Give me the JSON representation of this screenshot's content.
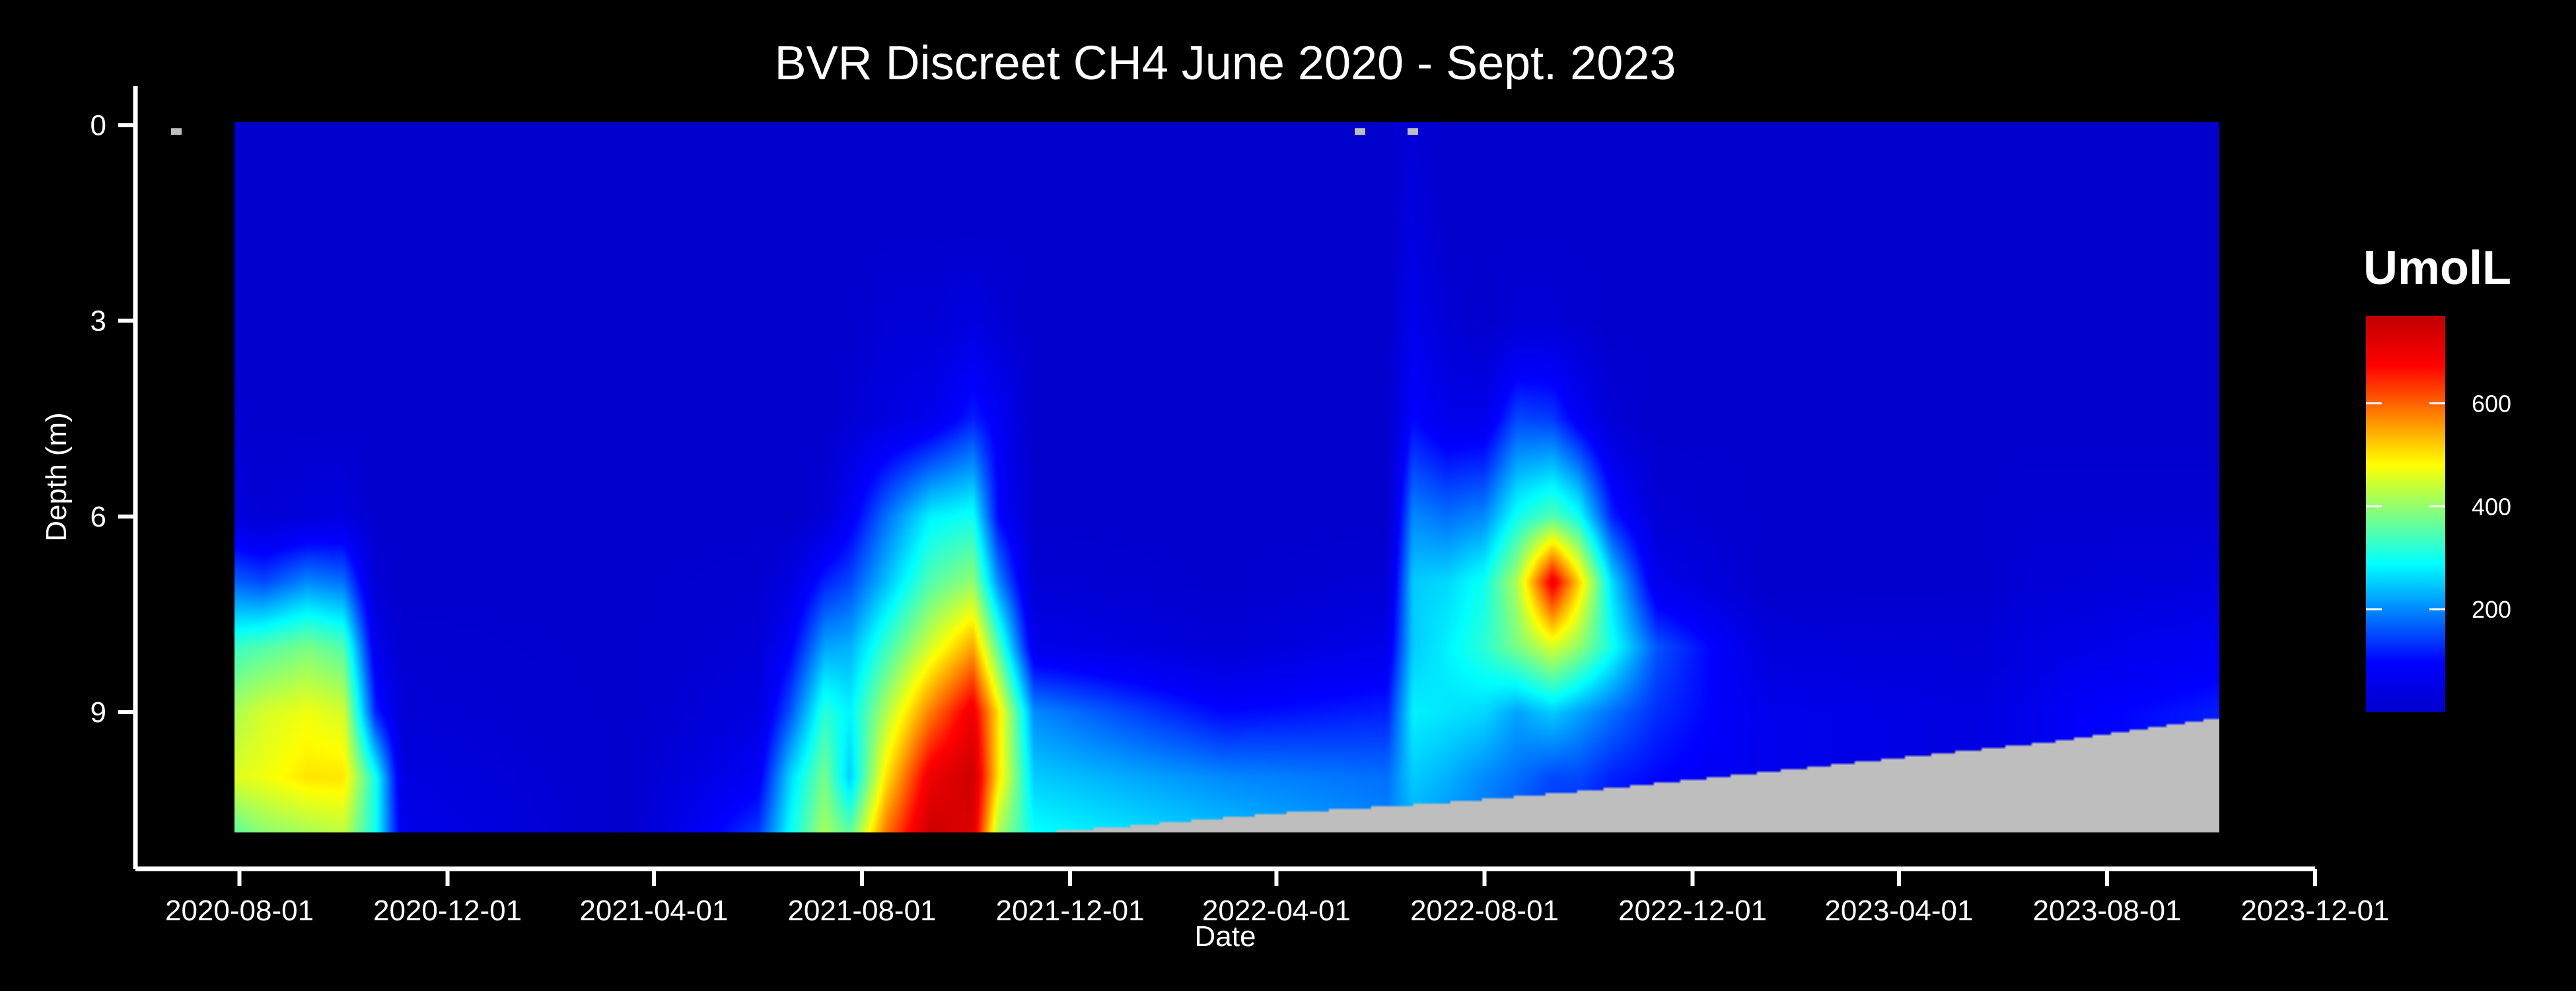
{
  "chart_data": {
    "type": "heatmap",
    "title": "BVR Discreet CH4 June 2020 - Sept. 2023",
    "xlabel": "Date",
    "ylabel": "Depth (m)",
    "x_axis": {
      "type": "date",
      "range": [
        "2020-06-01",
        "2023-12-01"
      ],
      "data_extent": [
        "2020-06-18",
        "2023-10-16"
      ],
      "ticks": [
        "2020-08-01",
        "2020-12-01",
        "2021-04-01",
        "2021-08-01",
        "2021-12-01",
        "2022-04-01",
        "2022-08-01",
        "2022-12-01",
        "2023-04-01",
        "2023-08-01",
        "2023-12-01"
      ]
    },
    "y_axis": {
      "reversed": true,
      "range": [
        -0.6,
        11.4
      ],
      "data_extent": [
        0.1,
        11
      ],
      "ticks": [
        0,
        3,
        6,
        9
      ]
    },
    "colorbar": {
      "title": "UmolL",
      "range": [
        0,
        770
      ],
      "ticks": [
        200,
        400,
        600
      ],
      "colors": [
        "#0000cc",
        "#0000ff",
        "#0080ff",
        "#00ffff",
        "#80ff80",
        "#ffff00",
        "#ff8000",
        "#ff0000",
        "#c00000"
      ],
      "position": "right"
    },
    "missing_color": "#bebebe",
    "grid": false,
    "depths": [
      0.1,
      1.5,
      3,
      4.5,
      6,
      7,
      8,
      9,
      10,
      11
    ],
    "bottom_limit": {
      "dates": [
        "2021-09-15",
        "2022-01-01",
        "2022-04-01",
        "2022-07-01",
        "2022-10-01",
        "2023-01-01",
        "2023-04-01",
        "2023-07-01",
        "2023-10-16"
      ],
      "depth": [
        10.95,
        10.75,
        10.55,
        10.4,
        10.2,
        9.95,
        9.7,
        9.45,
        9.05
      ]
    },
    "profiles": [
      {
        "date": "2020-06-18",
        "values": [
          0,
          0,
          0,
          0,
          0,
          10,
          30,
          80,
          200,
          180
        ]
      },
      {
        "date": "2020-07-01",
        "values": [
          0,
          0,
          0,
          0,
          10,
          120,
          200,
          300,
          350,
          260
        ]
      },
      {
        "date": "2020-07-20",
        "values": [
          0,
          0,
          0,
          10,
          40,
          180,
          320,
          400,
          450,
          320
        ]
      },
      {
        "date": "2020-08-15",
        "values": [
          0,
          0,
          0,
          0,
          20,
          150,
          350,
          450,
          470,
          380
        ]
      },
      {
        "date": "2020-09-10",
        "values": [
          0,
          0,
          0,
          0,
          30,
          200,
          380,
          470,
          500,
          400
        ]
      },
      {
        "date": "2020-10-01",
        "values": [
          0,
          0,
          0,
          0,
          40,
          180,
          350,
          450,
          500,
          420
        ]
      },
      {
        "date": "2020-10-20",
        "values": [
          0,
          0,
          0,
          0,
          0,
          20,
          60,
          120,
          300,
          300
        ]
      },
      {
        "date": "2020-11-05",
        "values": [
          0,
          0,
          0,
          0,
          0,
          0,
          10,
          20,
          40,
          60
        ]
      },
      {
        "date": "2021-03-15",
        "values": [
          0,
          0,
          0,
          0,
          0,
          0,
          0,
          0,
          0,
          0
        ]
      },
      {
        "date": "2021-06-01",
        "values": [
          0,
          0,
          0,
          0,
          0,
          10,
          20,
          40,
          80,
          150
        ]
      },
      {
        "date": "2021-06-20",
        "values": [
          0,
          0,
          0,
          0,
          0,
          40,
          90,
          160,
          260,
          300
        ]
      },
      {
        "date": "2021-07-10",
        "values": [
          0,
          0,
          0,
          0,
          20,
          120,
          220,
          320,
          380,
          420
        ]
      },
      {
        "date": "2021-07-25",
        "values": [
          0,
          0,
          0,
          20,
          80,
          150,
          230,
          280,
          250,
          380
        ]
      },
      {
        "date": "2021-08-15",
        "values": [
          0,
          0,
          20,
          40,
          180,
          240,
          330,
          420,
          500,
          600
        ]
      },
      {
        "date": "2021-09-10",
        "values": [
          0,
          0,
          20,
          60,
          280,
          350,
          450,
          580,
          700,
          760
        ]
      },
      {
        "date": "2021-10-05",
        "values": [
          0,
          0,
          40,
          120,
          300,
          400,
          550,
          700,
          750,
          720
        ]
      },
      {
        "date": "2021-10-20",
        "values": [
          0,
          0,
          20,
          80,
          100,
          200,
          350,
          500,
          500,
          400
        ]
      },
      {
        "date": "2021-11-10",
        "values": [
          0,
          0,
          0,
          0,
          0,
          20,
          60,
          200,
          250,
          300
        ]
      },
      {
        "date": "2022-03-01",
        "values": [
          0,
          0,
          0,
          0,
          0,
          0,
          20,
          100,
          200,
          250
        ]
      },
      {
        "date": "2022-06-05",
        "values": [
          0,
          0,
          0,
          0,
          0,
          20,
          60,
          120,
          180,
          200
        ]
      },
      {
        "date": "2022-06-20",
        "values": [
          20,
          40,
          60,
          100,
          200,
          250,
          250,
          280,
          250,
          220
        ]
      },
      {
        "date": "2022-07-10",
        "values": [
          0,
          0,
          20,
          60,
          180,
          260,
          280,
          270,
          230,
          200
        ]
      },
      {
        "date": "2022-08-01",
        "values": [
          0,
          0,
          0,
          60,
          200,
          300,
          320,
          260,
          200,
          180
        ]
      },
      {
        "date": "2022-08-20",
        "values": [
          0,
          0,
          20,
          150,
          300,
          420,
          380,
          220,
          180,
          150
        ]
      },
      {
        "date": "2022-09-10",
        "values": [
          0,
          0,
          20,
          140,
          350,
          700,
          450,
          250,
          150,
          120
        ]
      },
      {
        "date": "2022-09-25",
        "values": [
          0,
          0,
          10,
          80,
          300,
          520,
          400,
          220,
          150,
          110
        ]
      },
      {
        "date": "2022-10-15",
        "values": [
          0,
          0,
          0,
          20,
          120,
          260,
          300,
          180,
          120,
          90
        ]
      },
      {
        "date": "2022-11-10",
        "values": [
          0,
          0,
          0,
          0,
          20,
          60,
          160,
          130,
          100,
          80
        ]
      },
      {
        "date": "2023-01-15",
        "values": [
          0,
          0,
          0,
          0,
          0,
          0,
          30,
          60,
          60,
          60
        ]
      },
      {
        "date": "2023-05-15",
        "values": [
          0,
          0,
          0,
          0,
          0,
          0,
          20,
          40,
          40,
          40
        ]
      },
      {
        "date": "2023-06-15",
        "values": [
          0,
          0,
          0,
          0,
          10,
          20,
          40,
          60,
          60,
          60
        ]
      },
      {
        "date": "2023-07-15",
        "values": [
          0,
          0,
          0,
          0,
          10,
          20,
          50,
          90,
          90,
          90
        ]
      },
      {
        "date": "2023-08-15",
        "values": [
          0,
          0,
          0,
          0,
          10,
          30,
          60,
          100,
          100,
          100
        ]
      },
      {
        "date": "2023-09-15",
        "values": [
          0,
          0,
          0,
          0,
          10,
          30,
          70,
          110,
          110,
          110
        ]
      },
      {
        "date": "2023-10-16",
        "values": [
          0,
          0,
          0,
          0,
          10,
          40,
          80,
          120,
          120,
          120
        ]
      }
    ],
    "missing_samples": [
      {
        "date": "2020-06-25",
        "depth": 0.1
      },
      {
        "date": "2022-05-20",
        "depth": 0.1
      },
      {
        "date": "2022-06-20",
        "depth": 0.1
      }
    ]
  }
}
